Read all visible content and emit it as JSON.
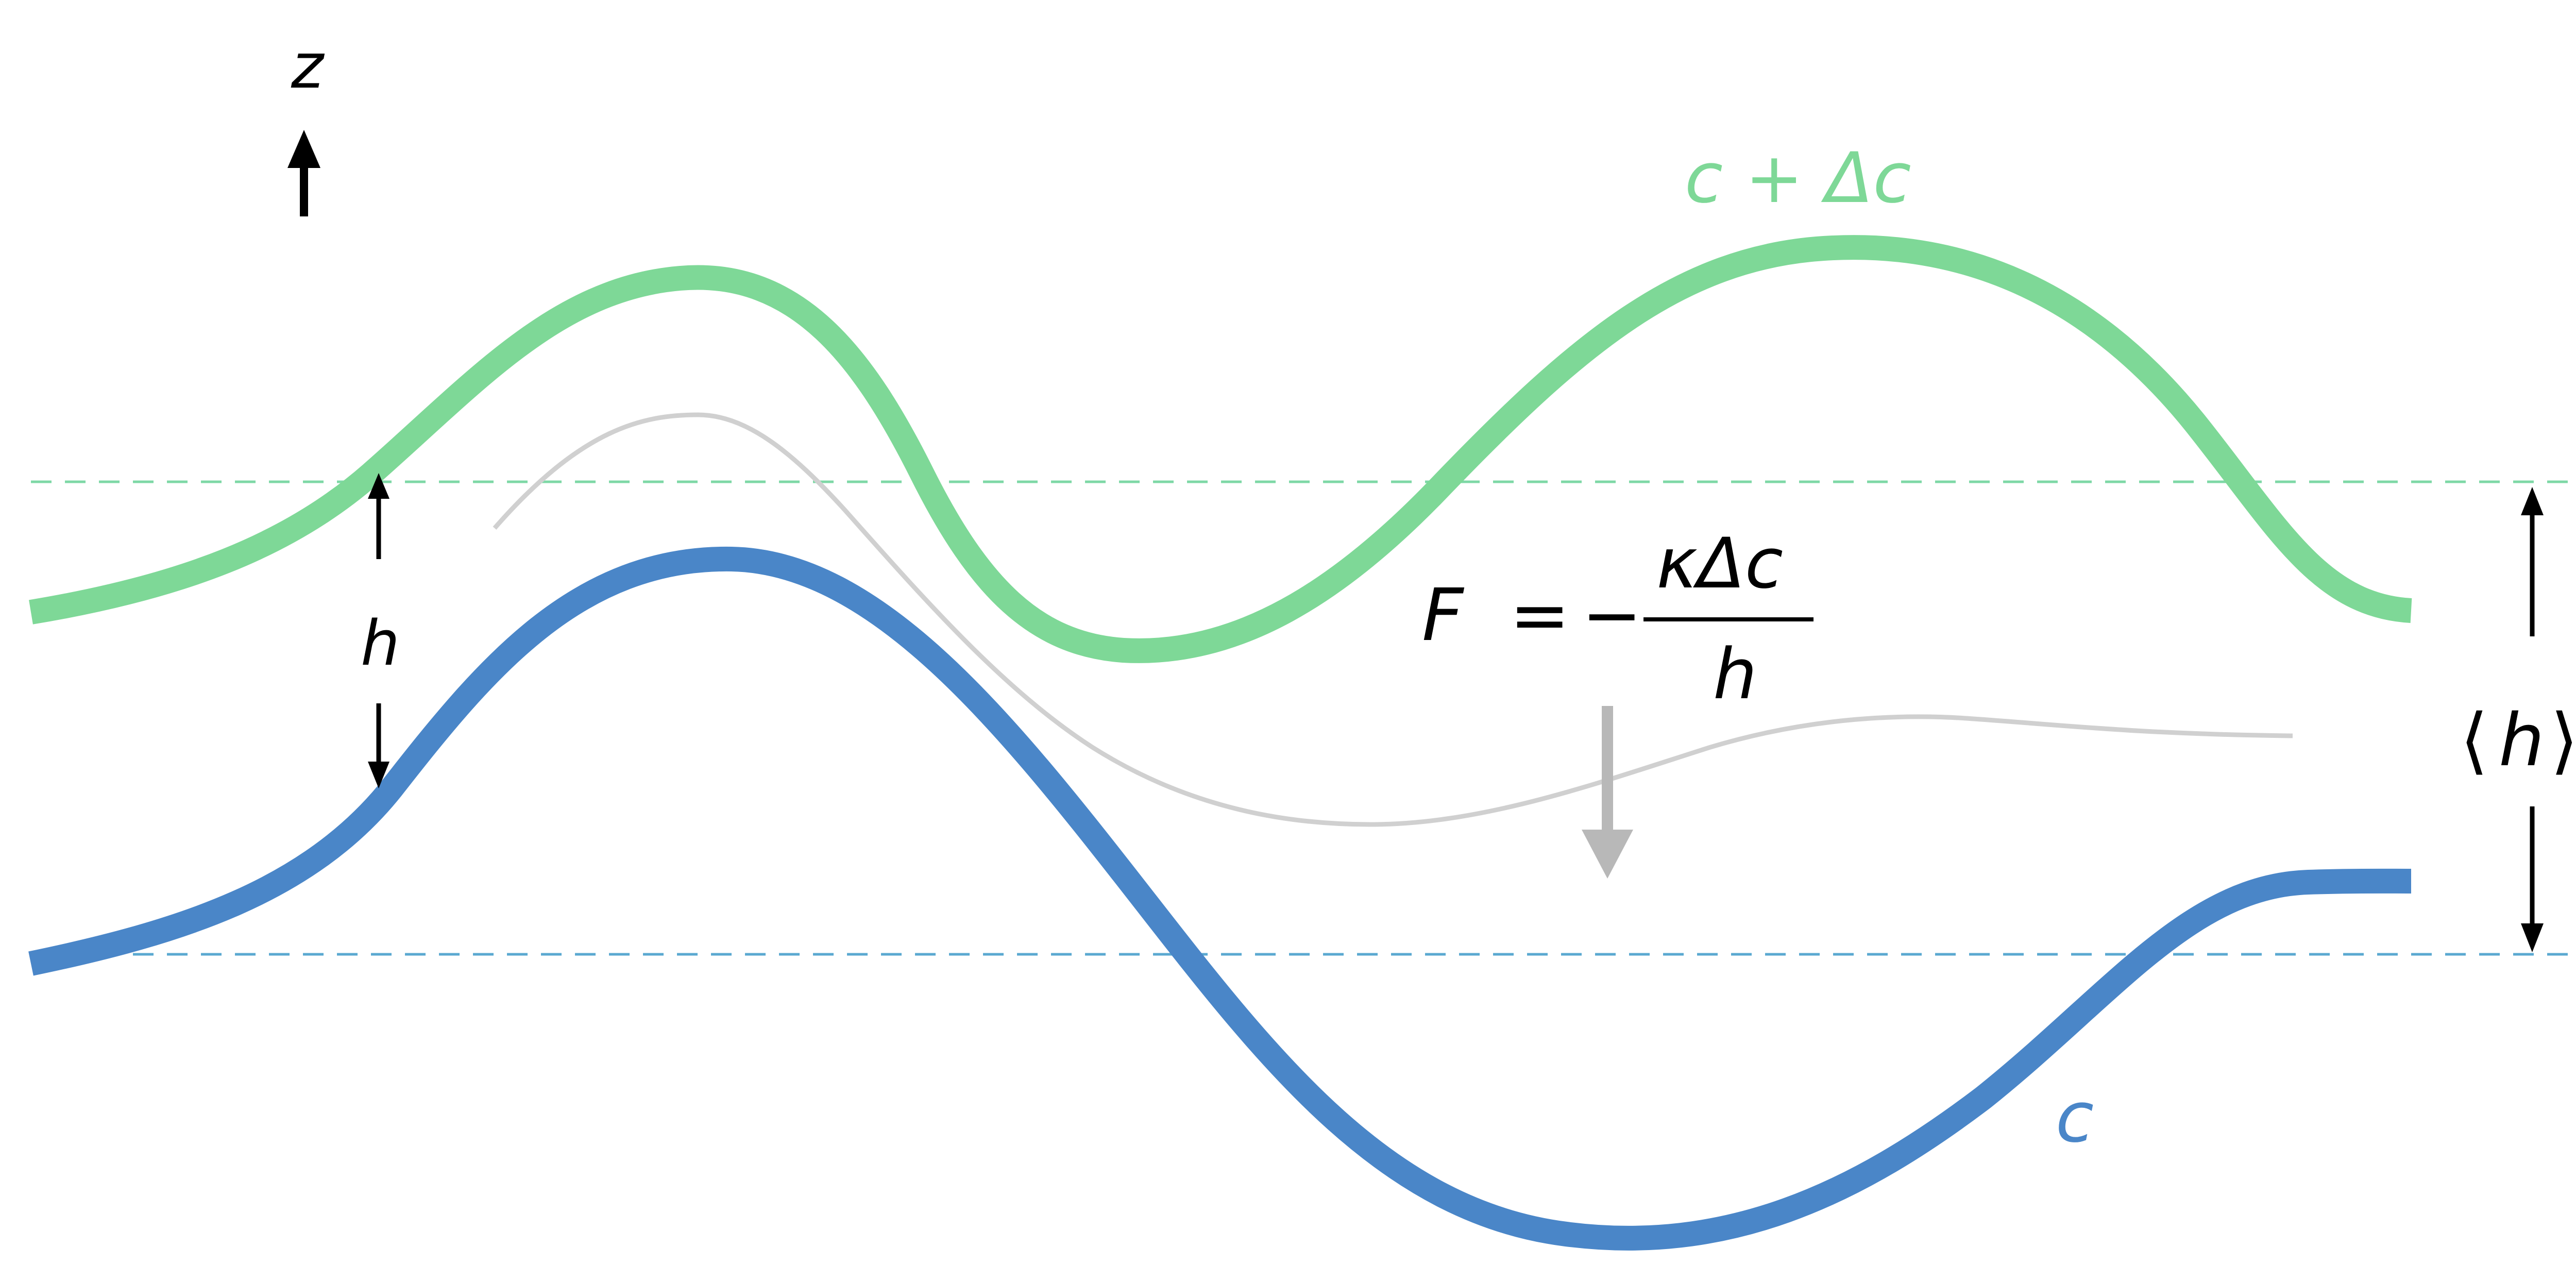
{
  "labels": {
    "z_axis": "z",
    "upper_curve": "c + Δc",
    "lower_curve": "c",
    "local_gap": "h",
    "mean_gap_left": "⟨",
    "mean_gap_var": "h",
    "mean_gap_right": "⟩",
    "flux_lhs": "F",
    "flux_equals": "=",
    "flux_minus": "−",
    "flux_numerator": "κΔc",
    "flux_denominator": "h"
  },
  "colors": {
    "upper_curve": "#7ed897",
    "lower_curve": "#4a86c8",
    "middle_curve": "#d0d0d0",
    "upper_dashed_line": "#7ed8a6",
    "lower_dashed_line": "#5aa8d0",
    "flux_arrow": "#b8b8b8",
    "annotation": "#000000"
  },
  "icons": {
    "z_arrow": "arrow-up-icon",
    "flux_arrow": "arrow-down-icon",
    "gap_arrows": "double-arrow-icon"
  }
}
